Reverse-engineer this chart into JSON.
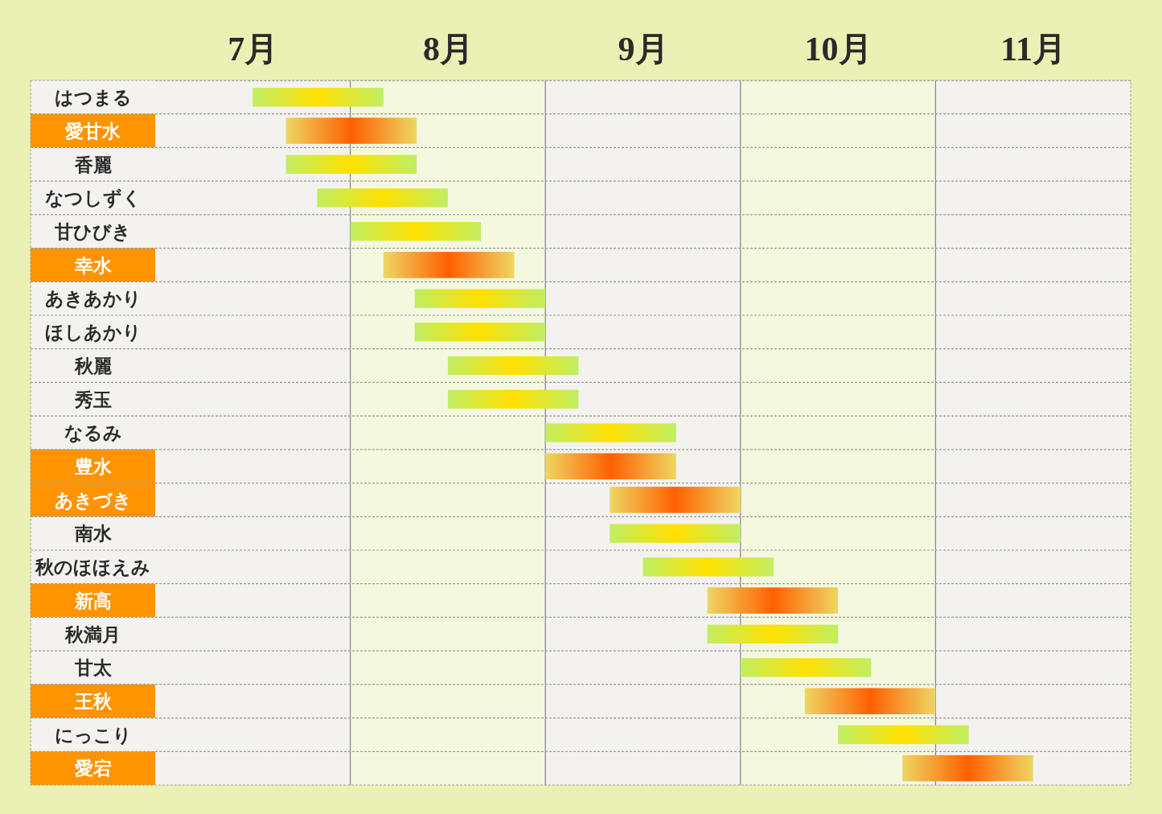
{
  "chart_data": {
    "type": "bar",
    "orientation": "horizontal",
    "categories": [
      "はつまる",
      "愛甘水",
      "香麗",
      "なつしずく",
      "甘ひびき",
      "幸水",
      "あきあかり",
      "ほしあかり",
      "秋麗",
      "秀玉",
      "なるみ",
      "豊水",
      "あきづき",
      "南水",
      "秋のほほえみ",
      "新高",
      "秋満月",
      "甘太",
      "王秋",
      "にっこり",
      "愛宕"
    ],
    "base": [
      7.5,
      7.67,
      7.67,
      7.83,
      8.0,
      8.17,
      8.33,
      8.33,
      8.5,
      8.5,
      9.0,
      9.0,
      9.33,
      9.33,
      9.5,
      9.83,
      9.83,
      10.0,
      10.33,
      10.5,
      10.83
    ],
    "values": [
      0.67,
      0.67,
      0.67,
      0.67,
      0.67,
      0.67,
      0.67,
      0.67,
      0.67,
      0.67,
      0.67,
      0.67,
      0.67,
      0.67,
      0.67,
      0.67,
      0.67,
      0.67,
      0.67,
      0.67,
      0.67
    ],
    "colors": [
      "#ffe000",
      "#ff6000",
      "#ffe000",
      "#ffe000",
      "#ffe000",
      "#ff6000",
      "#ffe000",
      "#ffe000",
      "#ffe000",
      "#ffe000",
      "#ffe000",
      "#ff6000",
      "#ff6000",
      "#ffe000",
      "#ffe000",
      "#ff6000",
      "#ffe000",
      "#ffe000",
      "#ff6000",
      "#ffe000",
      "#ff6000"
    ],
    "xlim": [
      7,
      12
    ],
    "xticks": [
      {
        "value": 7.5,
        "label": "7月"
      },
      {
        "value": 8.5,
        "label": "8月"
      },
      {
        "value": 9.5,
        "label": "9月"
      },
      {
        "value": 10.5,
        "label": "10月"
      },
      {
        "value": 11.5,
        "label": "11月"
      }
    ],
    "bands": [
      {
        "axis": "x",
        "from": 8,
        "to": 9,
        "color": "#f4f8de"
      },
      {
        "axis": "x",
        "from": 10,
        "to": 11,
        "color": "#f4f8de"
      }
    ]
  }
}
